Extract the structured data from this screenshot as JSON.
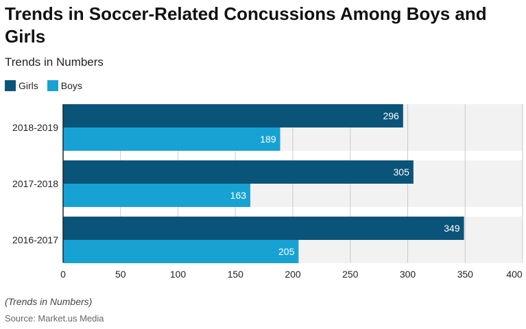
{
  "header": {
    "title": "Trends in Soccer-Related Concussions Among Boys and Girls",
    "subtitle": "Trends in Numbers"
  },
  "footer": {
    "note": "(Trends in Numbers)",
    "source": "Source: Market.us Media"
  },
  "colors": {
    "girls": "#0b5479",
    "boys": "#18a2d3",
    "band": "#f2f2f2",
    "grid": "#c8c8c8",
    "axis": "#222222"
  },
  "chart_data": {
    "type": "bar",
    "orientation": "horizontal",
    "title": "Trends in Soccer-Related Concussions Among Boys and Girls",
    "subtitle": "Trends in Numbers",
    "categories": [
      "2018-2019",
      "2017-2018",
      "2016-2017"
    ],
    "series": [
      {
        "name": "Girls",
        "values": [
          296,
          305,
          349
        ]
      },
      {
        "name": "Boys",
        "values": [
          189,
          163,
          205
        ]
      }
    ],
    "xlim": [
      0,
      400
    ],
    "xticks": [
      "0",
      "50",
      "100",
      "150",
      "200",
      "250",
      "300",
      "350",
      "400"
    ],
    "xlabel": "",
    "ylabel": "",
    "legend": "top-left",
    "grid": true
  }
}
